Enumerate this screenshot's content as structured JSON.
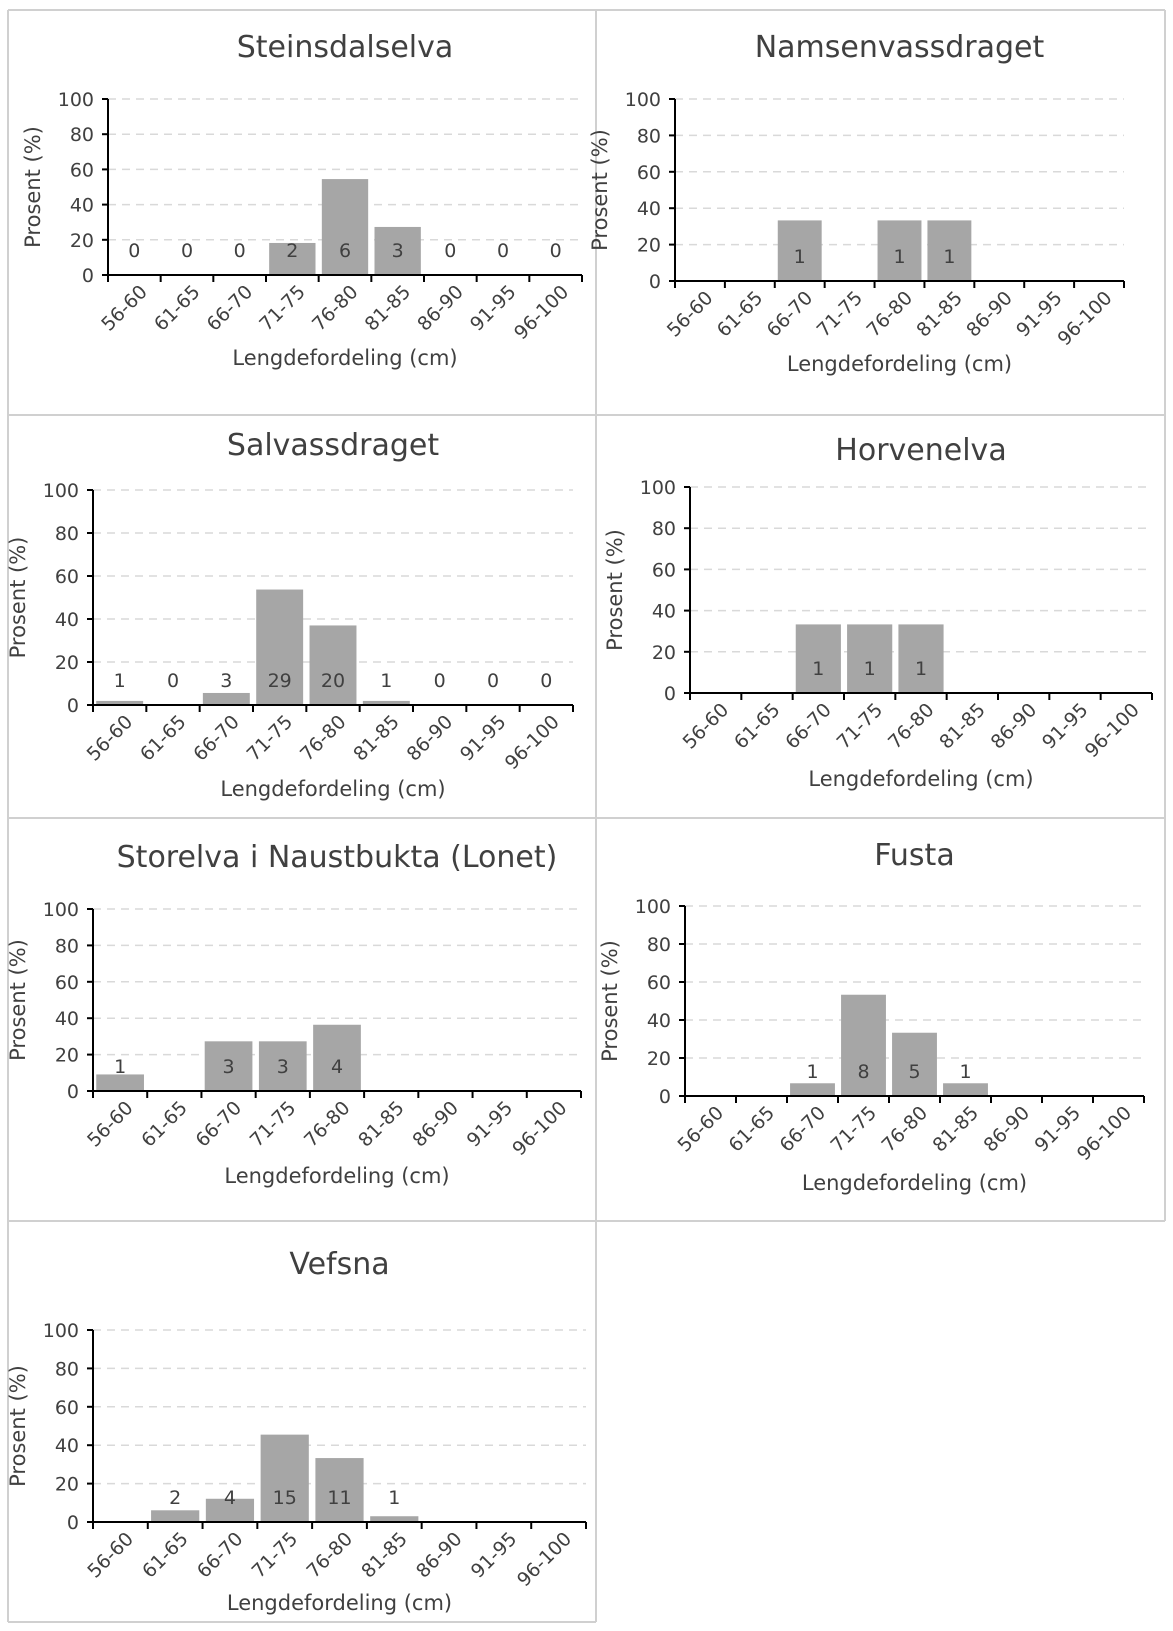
{
  "figure": {
    "categories": [
      "56-60",
      "61-65",
      "66-70",
      "71-75",
      "76-80",
      "81-85",
      "86-90",
      "91-95",
      "96-100"
    ],
    "xlabel": "Lengdefordeling (cm)",
    "ylabel": "Prosent (%)",
    "yticks": [
      0,
      20,
      40,
      60,
      80,
      100
    ],
    "bar_color": "#a6a6a6",
    "grid_color": "#d9d9d9",
    "border_color": "#d0d0d0"
  },
  "chart_data": [
    {
      "type": "bar",
      "title": "Steinsdalselva",
      "categories": [
        "56-60",
        "61-65",
        "66-70",
        "71-75",
        "76-80",
        "81-85",
        "86-90",
        "91-95",
        "96-100"
      ],
      "values": [
        0,
        0,
        0,
        18.2,
        54.5,
        27.3,
        0,
        0,
        0
      ],
      "counts": [
        0,
        0,
        0,
        2,
        6,
        3,
        0,
        0,
        0
      ],
      "count_labels": [
        "0",
        "0",
        "0",
        "2",
        "6",
        "3",
        "0",
        "0",
        "0"
      ],
      "xlabel": "Lengdefordeling (cm)",
      "ylabel": "Prosent (%)",
      "ylim": [
        0,
        100
      ],
      "grid": true
    },
    {
      "type": "bar",
      "title": "Namsenvassdraget",
      "categories": [
        "56-60",
        "61-65",
        "66-70",
        "71-75",
        "76-80",
        "81-85",
        "86-90",
        "91-95",
        "96-100"
      ],
      "values": [
        0,
        0,
        33.3,
        0,
        33.3,
        33.3,
        0,
        0,
        0
      ],
      "counts": [
        null,
        null,
        1,
        null,
        1,
        1,
        null,
        null,
        null
      ],
      "count_labels": [
        "",
        "",
        "1",
        "",
        "1",
        "1",
        "",
        "",
        ""
      ],
      "xlabel": "Lengdefordeling (cm)",
      "ylabel": "Prosent (%)",
      "ylim": [
        0,
        100
      ],
      "grid": true
    },
    {
      "type": "bar",
      "title": "Salvassdraget",
      "categories": [
        "56-60",
        "61-65",
        "66-70",
        "71-75",
        "76-80",
        "81-85",
        "86-90",
        "91-95",
        "96-100"
      ],
      "values": [
        1.9,
        0,
        5.6,
        53.7,
        37.0,
        1.9,
        0,
        0,
        0
      ],
      "counts": [
        1,
        0,
        3,
        29,
        20,
        1,
        0,
        0,
        0
      ],
      "count_labels": [
        "1",
        "0",
        "3",
        "29",
        "20",
        "1",
        "0",
        "0",
        "0"
      ],
      "xlabel": "Lengdefordeling (cm)",
      "ylabel": "Prosent (%)",
      "ylim": [
        0,
        100
      ],
      "grid": true
    },
    {
      "type": "bar",
      "title": "Horvenelva",
      "categories": [
        "56-60",
        "61-65",
        "66-70",
        "71-75",
        "76-80",
        "81-85",
        "86-90",
        "91-95",
        "96-100"
      ],
      "values": [
        0,
        0,
        33.3,
        33.3,
        33.3,
        0,
        0,
        0,
        0
      ],
      "counts": [
        null,
        null,
        1,
        1,
        1,
        null,
        null,
        null,
        null
      ],
      "count_labels": [
        "",
        "",
        "1",
        "1",
        "1",
        "",
        "",
        "",
        ""
      ],
      "xlabel": "Lengdefordeling (cm)",
      "ylabel": "Prosent (%)",
      "ylim": [
        0,
        100
      ],
      "grid": true
    },
    {
      "type": "bar",
      "title": "Storelva i Naustbukta (Lonet)",
      "categories": [
        "56-60",
        "61-65",
        "66-70",
        "71-75",
        "76-80",
        "81-85",
        "86-90",
        "91-95",
        "96-100"
      ],
      "values": [
        9.1,
        0,
        27.3,
        27.3,
        36.4,
        0,
        0,
        0,
        0
      ],
      "counts": [
        1,
        null,
        3,
        3,
        4,
        null,
        null,
        null,
        null
      ],
      "count_labels": [
        "1",
        "",
        "3",
        "3",
        "4",
        "",
        "",
        "",
        ""
      ],
      "xlabel": "Lengdefordeling (cm)",
      "ylabel": "Prosent (%)",
      "ylim": [
        0,
        100
      ],
      "grid": true
    },
    {
      "type": "bar",
      "title": "Fusta",
      "categories": [
        "56-60",
        "61-65",
        "66-70",
        "71-75",
        "76-80",
        "81-85",
        "86-90",
        "91-95",
        "96-100"
      ],
      "values": [
        0,
        0,
        6.7,
        53.3,
        33.3,
        6.7,
        0,
        0,
        0
      ],
      "counts": [
        null,
        null,
        1,
        8,
        5,
        1,
        null,
        null,
        null
      ],
      "count_labels": [
        "",
        "",
        "1",
        "8",
        "5",
        "1",
        "",
        "",
        ""
      ],
      "xlabel": "Lengdefordeling (cm)",
      "ylabel": "Prosent (%)",
      "ylim": [
        0,
        100
      ],
      "grid": true
    },
    {
      "type": "bar",
      "title": "Vefsna",
      "categories": [
        "56-60",
        "61-65",
        "66-70",
        "71-75",
        "76-80",
        "81-85",
        "86-90",
        "91-95",
        "96-100"
      ],
      "values": [
        0,
        6.1,
        12.1,
        45.5,
        33.3,
        3.0,
        0,
        0,
        0
      ],
      "counts": [
        null,
        2,
        4,
        15,
        11,
        1,
        null,
        null,
        null
      ],
      "count_labels": [
        "",
        "2",
        "4",
        "15",
        "11",
        "1",
        "",
        "",
        ""
      ],
      "xlabel": "Lengdefordeling (cm)",
      "ylabel": "Prosent (%)",
      "ylim": [
        0,
        100
      ],
      "grid": true
    }
  ]
}
